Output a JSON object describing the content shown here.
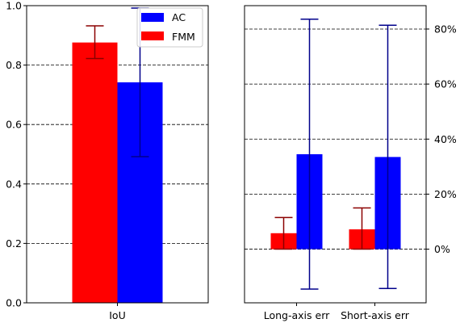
{
  "chart_data": [
    {
      "type": "bar",
      "categories": [
        "IoU"
      ],
      "series": [
        {
          "name": "FMM",
          "color": "#ff0000",
          "values": [
            0.876
          ],
          "err_low": [
            0.822
          ],
          "err_high": [
            0.932
          ]
        },
        {
          "name": "AC",
          "color": "#0000ff",
          "values": [
            0.742
          ],
          "err_low": [
            0.492
          ],
          "err_high": [
            0.992
          ]
        }
      ],
      "ylim": [
        0,
        1.0
      ],
      "yticks": [
        0.0,
        0.2,
        0.4,
        0.6,
        0.8,
        1.0
      ],
      "ytick_labels": [
        "0.0",
        "0.2",
        "0.4",
        "0.6",
        "0.8",
        "1.0"
      ],
      "grid": "horizontal-dashed",
      "legend": {
        "placement": "top-right",
        "entries": [
          "AC",
          "FMM"
        ]
      }
    },
    {
      "type": "bar",
      "categories": [
        "Long-axis err",
        "Short-axis err"
      ],
      "series": [
        {
          "name": "FMM",
          "color": "#ff0000",
          "values": [
            5.8,
            7.2
          ],
          "err_low": [
            0.0,
            0.0
          ],
          "err_high": [
            11.5,
            15.0
          ]
        },
        {
          "name": "AC",
          "color": "#0000ff",
          "values": [
            34.5,
            33.5
          ],
          "err_low": [
            -14.5,
            -14.3
          ],
          "err_high": [
            83.6,
            81.4
          ]
        }
      ],
      "ylim": [
        -19.5,
        88.5
      ],
      "yticks": [
        0,
        20,
        40,
        60,
        80
      ],
      "ytick_labels": [
        "0%",
        "20%",
        "40%",
        "60%",
        "80%"
      ],
      "yaxis_side": "right",
      "grid": "horizontal-dashed"
    }
  ],
  "legend_labels": {
    "ac": "AC",
    "fmm": "FMM"
  }
}
